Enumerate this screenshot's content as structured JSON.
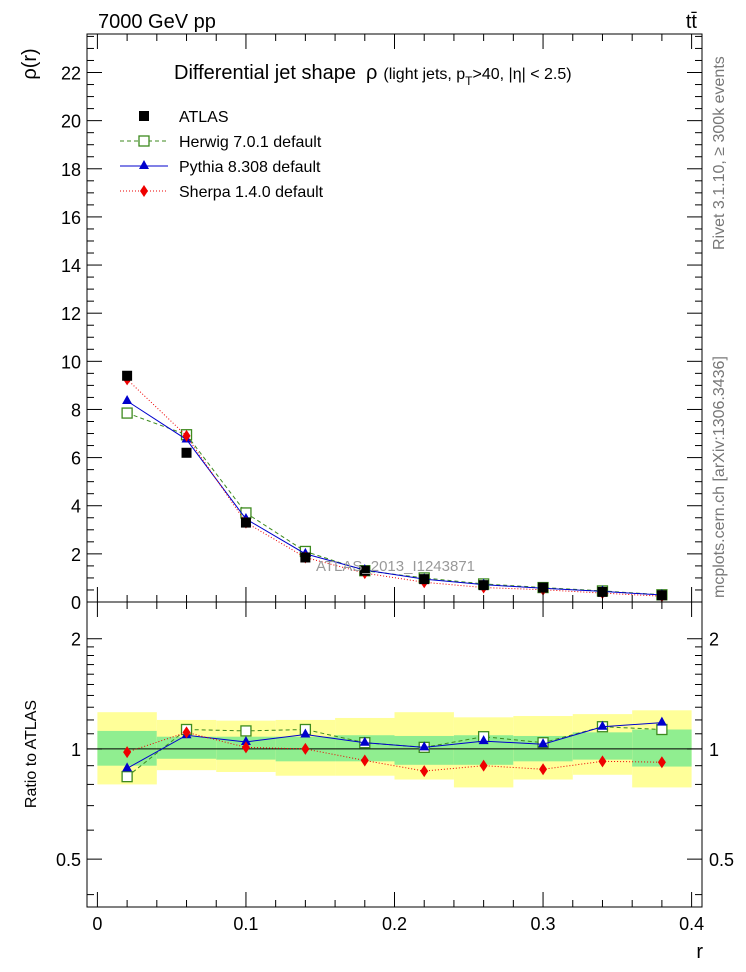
{
  "header": {
    "energy_label": "7000 GeV pp",
    "process_label": "tt̄"
  },
  "side_labels": {
    "rivet": "Rivet 3.1.10, ≥ 300k events",
    "mcplots": "mcplots.cern.ch [arXiv:1306.3436]"
  },
  "watermark": "ATLAS_2013_I1243871",
  "chart_data": [
    {
      "type": "line",
      "title": "Differential jet shape  ρ (light jets, pT>40, |η| < 2.5)",
      "title_main": "Differential jet shape",
      "title_symbol": "ρ",
      "title_details_pre": "(light jets, p",
      "title_details_sub": "T",
      "title_details_post": ">40, |η| < 2.5)",
      "ylabel": "ρ(r)",
      "xlim": [
        -0.007,
        0.407
      ],
      "ylim": [
        0,
        23.6
      ],
      "yticks": [
        0,
        2,
        4,
        6,
        8,
        10,
        12,
        14,
        16,
        18,
        20,
        22
      ],
      "ytick_labels": [
        "0",
        "2",
        "4",
        "6",
        "8",
        "10",
        "12",
        "14",
        "16",
        "18",
        "20",
        "22"
      ],
      "legend_position": "top-left",
      "x": [
        0.02,
        0.06,
        0.1,
        0.14,
        0.18,
        0.22,
        0.26,
        0.3,
        0.34,
        0.38
      ],
      "series": [
        {
          "name": "ATLAS",
          "marker": "square-filled",
          "color": "#000000",
          "values": [
            9.4,
            6.2,
            3.3,
            1.85,
            1.3,
            0.95,
            0.7,
            0.6,
            0.42,
            0.28
          ]
        },
        {
          "name": "Herwig 7.0.1 default",
          "marker": "square-open",
          "color": "#3d8a1e",
          "values": [
            7.85,
            6.95,
            3.7,
            2.1,
            1.3,
            1.0,
            0.75,
            0.6,
            0.46,
            0.3
          ]
        },
        {
          "name": "Pythia 8.308 default",
          "marker": "triangle",
          "color": "#0000cc",
          "values": [
            8.35,
            6.75,
            3.45,
            2.0,
            1.33,
            0.95,
            0.72,
            0.57,
            0.44,
            0.29
          ]
        },
        {
          "name": "Sherpa 1.4.0 default",
          "marker": "diamond",
          "color": "#ee0000",
          "values": [
            9.25,
            6.9,
            3.3,
            1.85,
            1.2,
            0.82,
            0.6,
            0.51,
            0.37,
            0.24
          ]
        }
      ]
    },
    {
      "type": "line",
      "title": "Ratio to ATLAS",
      "ylabel": "Ratio to ATLAS",
      "xlabel": "r",
      "xlim": [
        -0.007,
        0.407
      ],
      "ylim": [
        0.37,
        2.52
      ],
      "yscale": "log",
      "yticks": [
        0.5,
        1,
        2
      ],
      "ytick_labels": [
        "0.5",
        "1",
        "2"
      ],
      "xticks": [
        0,
        0.1,
        0.2,
        0.3,
        0.4
      ],
      "xtick_labels": [
        "0",
        "0.1",
        "0.2",
        "0.3",
        "0.4"
      ],
      "x": [
        0.02,
        0.06,
        0.1,
        0.14,
        0.18,
        0.22,
        0.26,
        0.3,
        0.34,
        0.38
      ],
      "bin_edges": [
        0.0,
        0.04,
        0.08,
        0.12,
        0.16,
        0.2,
        0.24,
        0.28,
        0.32,
        0.36,
        0.4
      ],
      "band_stat": {
        "color": "#90ee90",
        "low": [
          0.9,
          0.94,
          0.935,
          0.925,
          0.925,
          0.905,
          0.905,
          0.925,
          0.935,
          0.895
        ],
        "high": [
          1.12,
          1.08,
          1.08,
          1.08,
          1.09,
          1.085,
          1.09,
          1.085,
          1.11,
          1.13
        ]
      },
      "band_syst": {
        "color": "#ffff99",
        "low": [
          0.8,
          0.875,
          0.865,
          0.845,
          0.845,
          0.825,
          0.785,
          0.825,
          0.85,
          0.785
        ],
        "high": [
          1.26,
          1.2,
          1.195,
          1.2,
          1.215,
          1.26,
          1.22,
          1.23,
          1.245,
          1.275
        ]
      },
      "series": [
        {
          "name": "Herwig 7.0.1 default",
          "color": "#3d8a1e",
          "marker": "square-open",
          "values": [
            0.84,
            1.13,
            1.12,
            1.13,
            1.04,
            1.01,
            1.08,
            1.04,
            1.15,
            1.13
          ]
        },
        {
          "name": "Pythia 8.308 default",
          "color": "#0000cc",
          "marker": "triangle",
          "values": [
            0.885,
            1.09,
            1.045,
            1.095,
            1.04,
            1.01,
            1.05,
            1.03,
            1.15,
            1.18
          ]
        },
        {
          "name": "Sherpa 1.4.0 default",
          "color": "#ee0000",
          "marker": "diamond",
          "values": [
            0.98,
            1.11,
            1.01,
            1.0,
            0.93,
            0.87,
            0.9,
            0.88,
            0.925,
            0.92
          ]
        }
      ]
    }
  ]
}
